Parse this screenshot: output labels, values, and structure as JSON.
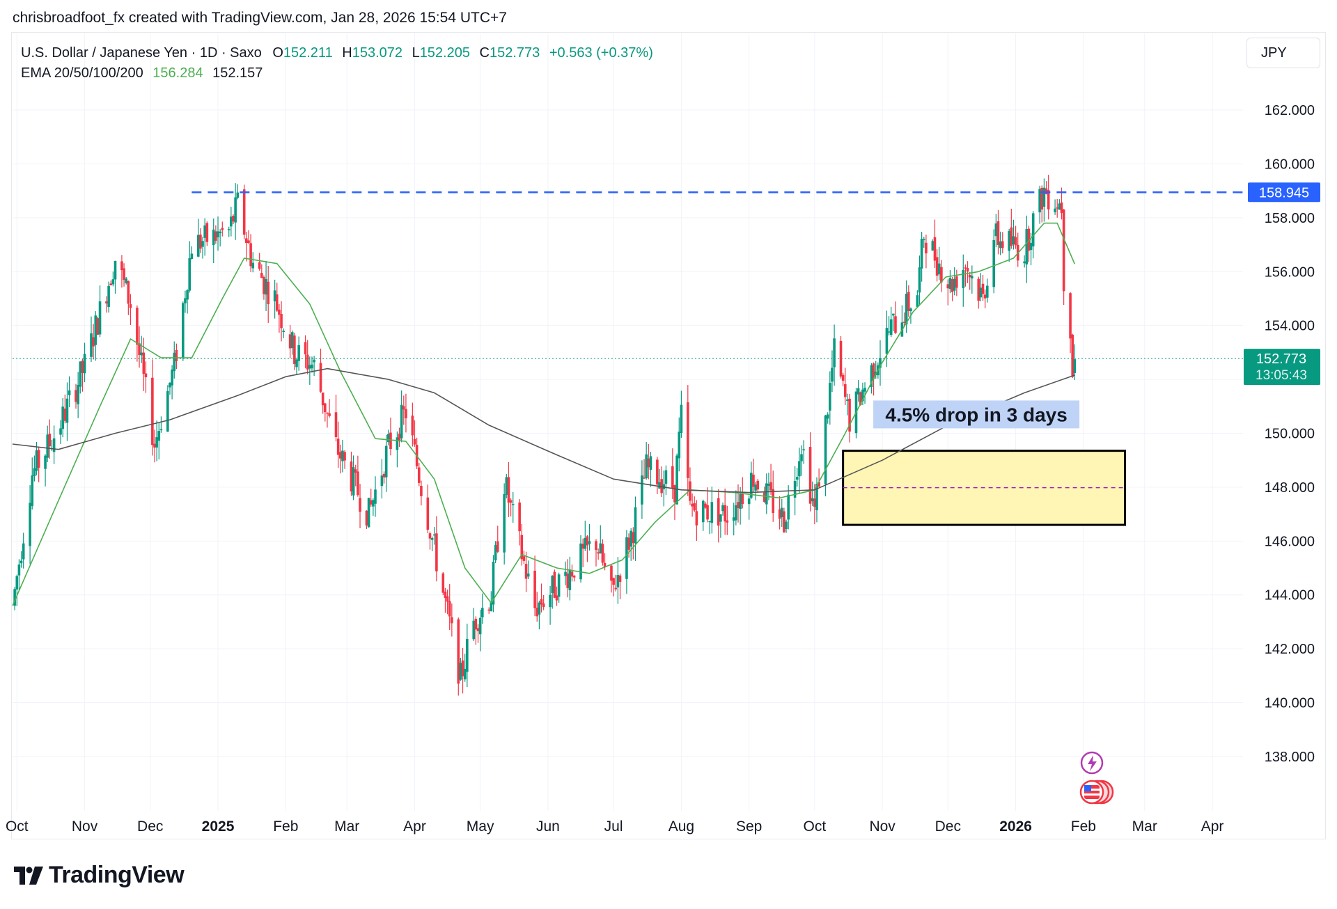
{
  "header": {
    "credit": "chrisbroadfoot_fx created with TradingView.com, Jan 28, 2026 15:54 UTC+7"
  },
  "legend": {
    "symbol": "U.S. Dollar / Japanese Yen · 1D · Saxo",
    "o_label": "O",
    "o_value": "152.211",
    "h_label": "H",
    "h_value": "153.072",
    "l_label": "L",
    "l_value": "152.205",
    "c_label": "C",
    "c_value": "152.773",
    "change": "+0.563 (+0.37%)",
    "ema_label": "EMA 20/50/100/200",
    "ema_fast": "156.284",
    "ema_slow": "152.157"
  },
  "currency_button": "JPY",
  "logo_text": "TradingView",
  "colors": {
    "up": "#089981",
    "down": "#f23645",
    "ema_fast": "#4caf50",
    "ema_slow": "#555555",
    "resistance": "#2962ff",
    "zone_fill": "#fff6b5",
    "annotation_bg": "#bfd3f6",
    "midline": "#9c27b0"
  },
  "chart_data": {
    "type": "candlestick",
    "title": "U.S. Dollar / Japanese Yen · 1D · Saxo",
    "ylim": [
      136.5,
      163.5
    ],
    "y_ticks": [
      "138.000",
      "140.000",
      "142.000",
      "144.000",
      "146.000",
      "148.000",
      "150.000",
      "152.000",
      "154.000",
      "156.000",
      "158.000",
      "160.000",
      "162.000"
    ],
    "x_ticks": [
      {
        "label": "Oct",
        "date": "2024-10-01",
        "bold": false
      },
      {
        "label": "Nov",
        "date": "2024-11-01",
        "bold": false
      },
      {
        "label": "Dec",
        "date": "2024-12-01",
        "bold": false
      },
      {
        "label": "2025",
        "date": "2025-01-01",
        "bold": true
      },
      {
        "label": "Feb",
        "date": "2025-02-01",
        "bold": false
      },
      {
        "label": "Mar",
        "date": "2025-03-01",
        "bold": false
      },
      {
        "label": "Apr",
        "date": "2025-04-01",
        "bold": false
      },
      {
        "label": "May",
        "date": "2025-05-01",
        "bold": false
      },
      {
        "label": "Jun",
        "date": "2025-06-01",
        "bold": false
      },
      {
        "label": "Jul",
        "date": "2025-07-01",
        "bold": false
      },
      {
        "label": "Aug",
        "date": "2025-08-01",
        "bold": false
      },
      {
        "label": "Sep",
        "date": "2025-09-01",
        "bold": false
      },
      {
        "label": "Oct",
        "date": "2025-10-01",
        "bold": false
      },
      {
        "label": "Nov",
        "date": "2025-11-01",
        "bold": false
      },
      {
        "label": "Dec",
        "date": "2025-12-01",
        "bold": false
      },
      {
        "label": "2026",
        "date": "2026-01-01",
        "bold": true
      },
      {
        "label": "Feb",
        "date": "2026-02-01",
        "bold": false
      },
      {
        "label": "Mar",
        "date": "2026-03-01",
        "bold": false
      },
      {
        "label": "Apr",
        "date": "2026-04-01",
        "bold": false
      }
    ],
    "x_range": [
      "2024-09-29",
      "2026-04-15"
    ],
    "price_path": [
      [
        "2024-09-29",
        143.6
      ],
      [
        "2024-10-08",
        148.5
      ],
      [
        "2024-10-20",
        150.2
      ],
      [
        "2024-11-01",
        152.5
      ],
      [
        "2024-11-15",
        156.5
      ],
      [
        "2024-11-22",
        154.8
      ],
      [
        "2024-12-03",
        149.6
      ],
      [
        "2024-12-12",
        152.5
      ],
      [
        "2024-12-20",
        157.0
      ],
      [
        "2025-01-06",
        157.5
      ],
      [
        "2025-01-10",
        158.5
      ],
      [
        "2025-01-17",
        156.3
      ],
      [
        "2025-01-27",
        155.0
      ],
      [
        "2025-02-05",
        153.0
      ],
      [
        "2025-02-14",
        152.5
      ],
      [
        "2025-02-24",
        149.5
      ],
      [
        "2025-03-11",
        147.0
      ],
      [
        "2025-03-20",
        149.5
      ],
      [
        "2025-03-28",
        150.8
      ],
      [
        "2025-04-08",
        146.5
      ],
      [
        "2025-04-22",
        140.9
      ],
      [
        "2025-04-28",
        143.0
      ],
      [
        "2025-05-06",
        144.0
      ],
      [
        "2025-05-12",
        148.2
      ],
      [
        "2025-05-26",
        143.5
      ],
      [
        "2025-06-10",
        144.8
      ],
      [
        "2025-06-23",
        146.0
      ],
      [
        "2025-06-30",
        144.0
      ],
      [
        "2025-07-10",
        146.5
      ],
      [
        "2025-07-16",
        148.7
      ],
      [
        "2025-07-29",
        148.0
      ],
      [
        "2025-08-01",
        150.6
      ],
      [
        "2025-08-05",
        147.2
      ],
      [
        "2025-08-22",
        147.0
      ],
      [
        "2025-09-03",
        148.4
      ],
      [
        "2025-09-17",
        146.8
      ],
      [
        "2025-09-25",
        149.7
      ],
      [
        "2025-10-01",
        147.1
      ],
      [
        "2025-10-10",
        153.0
      ],
      [
        "2025-10-17",
        150.5
      ],
      [
        "2025-11-04",
        153.8
      ],
      [
        "2025-11-17",
        155.2
      ],
      [
        "2025-11-20",
        157.4
      ],
      [
        "2025-12-02",
        155.5
      ],
      [
        "2025-12-09",
        156.3
      ],
      [
        "2025-12-17",
        155.0
      ],
      [
        "2025-12-22",
        157.3
      ],
      [
        "2026-01-05",
        156.8
      ],
      [
        "2026-01-09",
        157.9
      ],
      [
        "2026-01-14",
        159.0
      ],
      [
        "2026-01-22",
        158.5
      ],
      [
        "2026-01-23",
        155.8
      ],
      [
        "2026-01-26",
        154.0
      ],
      [
        "2026-01-27",
        152.3
      ],
      [
        "2026-01-28",
        152.773
      ]
    ],
    "ema_fast_path": [
      [
        "2024-09-29",
        143.6
      ],
      [
        "2024-10-20",
        147.5
      ],
      [
        "2024-11-08",
        151.0
      ],
      [
        "2024-11-22",
        153.5
      ],
      [
        "2024-12-06",
        152.8
      ],
      [
        "2024-12-20",
        152.8
      ],
      [
        "2025-01-03",
        155.0
      ],
      [
        "2025-01-13",
        156.5
      ],
      [
        "2025-01-28",
        156.3
      ],
      [
        "2025-02-12",
        154.8
      ],
      [
        "2025-02-26",
        152.3
      ],
      [
        "2025-03-14",
        149.8
      ],
      [
        "2025-03-28",
        149.7
      ],
      [
        "2025-04-10",
        148.3
      ],
      [
        "2025-04-24",
        145.0
      ],
      [
        "2025-05-06",
        143.7
      ],
      [
        "2025-05-20",
        145.5
      ],
      [
        "2025-06-05",
        145.0
      ],
      [
        "2025-06-20",
        144.8
      ],
      [
        "2025-07-05",
        145.3
      ],
      [
        "2025-07-20",
        146.7
      ],
      [
        "2025-08-05",
        147.9
      ],
      [
        "2025-08-25",
        147.8
      ],
      [
        "2025-09-15",
        147.6
      ],
      [
        "2025-10-01",
        147.9
      ],
      [
        "2025-10-15",
        150.0
      ],
      [
        "2025-10-31",
        152.5
      ],
      [
        "2025-11-15",
        154.5
      ],
      [
        "2025-11-30",
        155.8
      ],
      [
        "2025-12-15",
        156.0
      ],
      [
        "2025-12-31",
        156.5
      ],
      [
        "2026-01-14",
        157.8
      ],
      [
        "2026-01-20",
        157.8
      ],
      [
        "2026-01-28",
        156.284
      ]
    ],
    "ema_slow_path": [
      [
        "2024-09-29",
        149.6
      ],
      [
        "2024-10-20",
        149.4
      ],
      [
        "2024-11-15",
        150.0
      ],
      [
        "2024-12-10",
        150.5
      ],
      [
        "2025-01-10",
        151.4
      ],
      [
        "2025-02-01",
        152.1
      ],
      [
        "2025-02-20",
        152.4
      ],
      [
        "2025-03-20",
        152.0
      ],
      [
        "2025-04-10",
        151.5
      ],
      [
        "2025-05-05",
        150.3
      ],
      [
        "2025-06-05",
        149.2
      ],
      [
        "2025-07-01",
        148.3
      ],
      [
        "2025-08-01",
        147.9
      ],
      [
        "2025-09-01",
        147.8
      ],
      [
        "2025-10-01",
        147.9
      ],
      [
        "2025-11-01",
        149.0
      ],
      [
        "2025-12-01",
        150.3
      ],
      [
        "2026-01-05",
        151.5
      ],
      [
        "2026-01-28",
        152.157
      ]
    ],
    "resistance": {
      "value": 158.945,
      "label": "158.945",
      "from": "2024-12-20",
      "to": "2026-04-15"
    },
    "last_price": {
      "value": 152.773,
      "label": "152.773",
      "countdown": "13:05:43"
    },
    "zone": {
      "from": "2025-10-14",
      "to": "2026-02-20",
      "y_low": 146.6,
      "y_high": 149.35,
      "mid": 147.98
    },
    "annotation": {
      "text": "4.5% drop in 3 days",
      "date": "2025-12-14",
      "y": 150.7
    },
    "event_icons": [
      "flash-event-icon",
      "us-flag-event-icon"
    ]
  }
}
